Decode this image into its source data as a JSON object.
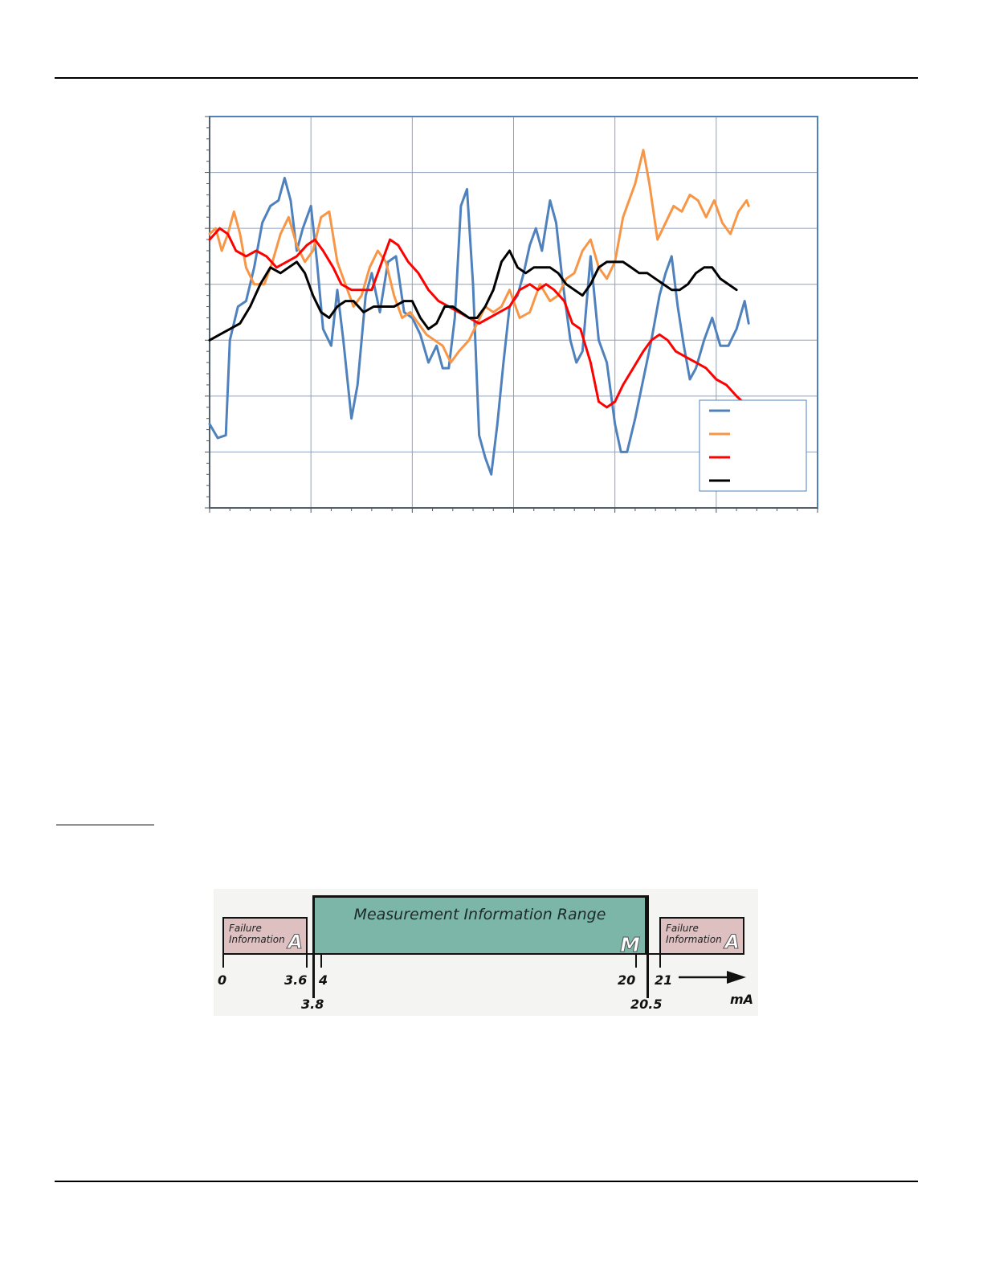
{
  "chart_data": {
    "type": "line",
    "title": "",
    "xlabel": "",
    "ylabel": "",
    "xlim": [
      0,
      30
    ],
    "ylim": [
      0,
      7
    ],
    "grid": true,
    "legend_placement": "bottom-right",
    "series": [
      {
        "color": "#4f81bd",
        "values": [
          [
            0,
            1.5
          ],
          [
            0.4,
            1.25
          ],
          [
            0.8,
            1.3
          ],
          [
            1.0,
            3.0
          ],
          [
            1.4,
            3.6
          ],
          [
            1.8,
            3.7
          ],
          [
            2.2,
            4.3
          ],
          [
            2.6,
            5.1
          ],
          [
            3.0,
            5.4
          ],
          [
            3.4,
            5.5
          ],
          [
            3.7,
            5.9
          ],
          [
            4.0,
            5.5
          ],
          [
            4.3,
            4.6
          ],
          [
            4.6,
            5.0
          ],
          [
            5.0,
            5.4
          ],
          [
            5.3,
            4.4
          ],
          [
            5.6,
            3.2
          ],
          [
            6.0,
            2.9
          ],
          [
            6.3,
            3.9
          ],
          [
            6.6,
            3.0
          ],
          [
            7.0,
            1.6
          ],
          [
            7.3,
            2.2
          ],
          [
            7.7,
            3.8
          ],
          [
            8.0,
            4.2
          ],
          [
            8.4,
            3.5
          ],
          [
            8.8,
            4.4
          ],
          [
            9.2,
            4.5
          ],
          [
            9.6,
            3.5
          ],
          [
            10.0,
            3.4
          ],
          [
            10.4,
            3.1
          ],
          [
            10.8,
            2.6
          ],
          [
            11.2,
            2.9
          ],
          [
            11.5,
            2.5
          ],
          [
            11.8,
            2.5
          ],
          [
            12.1,
            3.4
          ],
          [
            12.4,
            5.4
          ],
          [
            12.7,
            5.7
          ],
          [
            13.0,
            4.0
          ],
          [
            13.3,
            1.3
          ],
          [
            13.6,
            0.9
          ],
          [
            13.9,
            0.6
          ],
          [
            14.2,
            1.5
          ],
          [
            14.5,
            2.6
          ],
          [
            14.8,
            3.6
          ],
          [
            15.2,
            3.8
          ],
          [
            15.5,
            4.2
          ],
          [
            15.8,
            4.7
          ],
          [
            16.1,
            5.0
          ],
          [
            16.4,
            4.6
          ],
          [
            16.8,
            5.5
          ],
          [
            17.1,
            5.1
          ],
          [
            17.4,
            4.1
          ],
          [
            17.8,
            3.0
          ],
          [
            18.1,
            2.6
          ],
          [
            18.4,
            2.8
          ],
          [
            18.8,
            4.5
          ],
          [
            19.2,
            3.0
          ],
          [
            19.6,
            2.6
          ],
          [
            20.0,
            1.5
          ],
          [
            20.3,
            1.0
          ],
          [
            20.6,
            1.0
          ],
          [
            21.0,
            1.6
          ],
          [
            21.4,
            2.3
          ],
          [
            21.8,
            3.0
          ],
          [
            22.2,
            3.8
          ],
          [
            22.5,
            4.2
          ],
          [
            22.8,
            4.5
          ],
          [
            23.1,
            3.6
          ],
          [
            23.4,
            2.9
          ],
          [
            23.7,
            2.3
          ],
          [
            24.0,
            2.5
          ],
          [
            24.4,
            3.0
          ],
          [
            24.8,
            3.4
          ],
          [
            25.2,
            2.9
          ],
          [
            25.6,
            2.9
          ],
          [
            26.0,
            3.2
          ],
          [
            26.4,
            3.7
          ],
          [
            26.6,
            3.3
          ]
        ]
      },
      {
        "color": "#f79646",
        "values": [
          [
            0,
            4.9
          ],
          [
            0.3,
            5.0
          ],
          [
            0.6,
            4.6
          ],
          [
            0.9,
            4.9
          ],
          [
            1.2,
            5.3
          ],
          [
            1.5,
            4.9
          ],
          [
            1.8,
            4.3
          ],
          [
            2.2,
            4.0
          ],
          [
            2.7,
            4.0
          ],
          [
            3.1,
            4.4
          ],
          [
            3.5,
            4.9
          ],
          [
            3.9,
            5.2
          ],
          [
            4.3,
            4.7
          ],
          [
            4.7,
            4.4
          ],
          [
            5.1,
            4.6
          ],
          [
            5.5,
            5.2
          ],
          [
            5.9,
            5.3
          ],
          [
            6.3,
            4.4
          ],
          [
            6.7,
            4.0
          ],
          [
            7.1,
            3.6
          ],
          [
            7.5,
            3.8
          ],
          [
            7.9,
            4.3
          ],
          [
            8.3,
            4.6
          ],
          [
            8.7,
            4.4
          ],
          [
            9.1,
            3.8
          ],
          [
            9.5,
            3.4
          ],
          [
            9.9,
            3.5
          ],
          [
            10.3,
            3.3
          ],
          [
            10.7,
            3.1
          ],
          [
            11.1,
            3.0
          ],
          [
            11.5,
            2.9
          ],
          [
            11.9,
            2.6
          ],
          [
            12.3,
            2.8
          ],
          [
            12.8,
            3.0
          ],
          [
            13.2,
            3.3
          ],
          [
            13.6,
            3.6
          ],
          [
            14.0,
            3.5
          ],
          [
            14.4,
            3.6
          ],
          [
            14.8,
            3.9
          ],
          [
            15.3,
            3.4
          ],
          [
            15.8,
            3.5
          ],
          [
            16.3,
            4.0
          ],
          [
            16.8,
            3.7
          ],
          [
            17.2,
            3.8
          ],
          [
            17.6,
            4.1
          ],
          [
            18.0,
            4.2
          ],
          [
            18.4,
            4.6
          ],
          [
            18.8,
            4.8
          ],
          [
            19.2,
            4.3
          ],
          [
            19.6,
            4.1
          ],
          [
            20.0,
            4.4
          ],
          [
            20.4,
            5.2
          ],
          [
            21.0,
            5.8
          ],
          [
            21.4,
            6.4
          ],
          [
            21.7,
            5.8
          ],
          [
            22.1,
            4.8
          ],
          [
            22.5,
            5.1
          ],
          [
            22.9,
            5.4
          ],
          [
            23.3,
            5.3
          ],
          [
            23.7,
            5.6
          ],
          [
            24.1,
            5.5
          ],
          [
            24.5,
            5.2
          ],
          [
            24.9,
            5.5
          ],
          [
            25.3,
            5.1
          ],
          [
            25.7,
            4.9
          ],
          [
            26.1,
            5.3
          ],
          [
            26.5,
            5.5
          ],
          [
            26.6,
            5.4
          ]
        ]
      },
      {
        "color": "#ff0000",
        "values": [
          [
            0,
            4.8
          ],
          [
            0.5,
            5.0
          ],
          [
            0.9,
            4.9
          ],
          [
            1.3,
            4.6
          ],
          [
            1.8,
            4.5
          ],
          [
            2.3,
            4.6
          ],
          [
            2.8,
            4.5
          ],
          [
            3.3,
            4.3
          ],
          [
            3.8,
            4.4
          ],
          [
            4.3,
            4.5
          ],
          [
            4.8,
            4.7
          ],
          [
            5.2,
            4.8
          ],
          [
            5.6,
            4.6
          ],
          [
            6.1,
            4.3
          ],
          [
            6.5,
            4.0
          ],
          [
            7.0,
            3.9
          ],
          [
            7.5,
            3.9
          ],
          [
            8.0,
            3.9
          ],
          [
            8.5,
            4.4
          ],
          [
            8.9,
            4.8
          ],
          [
            9.3,
            4.7
          ],
          [
            9.8,
            4.4
          ],
          [
            10.3,
            4.2
          ],
          [
            10.8,
            3.9
          ],
          [
            11.3,
            3.7
          ],
          [
            11.8,
            3.6
          ],
          [
            12.3,
            3.5
          ],
          [
            12.8,
            3.4
          ],
          [
            13.3,
            3.3
          ],
          [
            13.8,
            3.4
          ],
          [
            14.3,
            3.5
          ],
          [
            14.8,
            3.6
          ],
          [
            15.3,
            3.9
          ],
          [
            15.8,
            4.0
          ],
          [
            16.2,
            3.9
          ],
          [
            16.6,
            4.0
          ],
          [
            17.0,
            3.9
          ],
          [
            17.5,
            3.7
          ],
          [
            17.9,
            3.3
          ],
          [
            18.3,
            3.2
          ],
          [
            18.8,
            2.6
          ],
          [
            19.2,
            1.9
          ],
          [
            19.6,
            1.8
          ],
          [
            20.0,
            1.9
          ],
          [
            20.4,
            2.2
          ],
          [
            20.9,
            2.5
          ],
          [
            21.4,
            2.8
          ],
          [
            21.8,
            3.0
          ],
          [
            22.2,
            3.1
          ],
          [
            22.6,
            3.0
          ],
          [
            23.0,
            2.8
          ],
          [
            23.5,
            2.7
          ],
          [
            24.0,
            2.6
          ],
          [
            24.5,
            2.5
          ],
          [
            25.0,
            2.3
          ],
          [
            25.5,
            2.2
          ],
          [
            26.0,
            2.0
          ],
          [
            26.3,
            1.9
          ],
          [
            26.6,
            1.8
          ]
        ]
      },
      {
        "color": "#000000",
        "values": [
          [
            0,
            3.0
          ],
          [
            0.5,
            3.1
          ],
          [
            1.0,
            3.2
          ],
          [
            1.5,
            3.3
          ],
          [
            2.0,
            3.6
          ],
          [
            2.5,
            4.0
          ],
          [
            3.0,
            4.3
          ],
          [
            3.5,
            4.2
          ],
          [
            3.9,
            4.3
          ],
          [
            4.3,
            4.4
          ],
          [
            4.7,
            4.2
          ],
          [
            5.1,
            3.8
          ],
          [
            5.5,
            3.5
          ],
          [
            5.9,
            3.4
          ],
          [
            6.3,
            3.6
          ],
          [
            6.7,
            3.7
          ],
          [
            7.1,
            3.7
          ],
          [
            7.6,
            3.5
          ],
          [
            8.1,
            3.6
          ],
          [
            8.6,
            3.6
          ],
          [
            9.1,
            3.6
          ],
          [
            9.6,
            3.7
          ],
          [
            10.0,
            3.7
          ],
          [
            10.4,
            3.4
          ],
          [
            10.8,
            3.2
          ],
          [
            11.2,
            3.3
          ],
          [
            11.6,
            3.6
          ],
          [
            12.0,
            3.6
          ],
          [
            12.4,
            3.5
          ],
          [
            12.8,
            3.4
          ],
          [
            13.2,
            3.4
          ],
          [
            13.6,
            3.6
          ],
          [
            14.0,
            3.9
          ],
          [
            14.4,
            4.4
          ],
          [
            14.8,
            4.6
          ],
          [
            15.2,
            4.3
          ],
          [
            15.6,
            4.2
          ],
          [
            16.0,
            4.3
          ],
          [
            16.4,
            4.3
          ],
          [
            16.8,
            4.3
          ],
          [
            17.2,
            4.2
          ],
          [
            17.6,
            4.0
          ],
          [
            18.0,
            3.9
          ],
          [
            18.4,
            3.8
          ],
          [
            18.8,
            4.0
          ],
          [
            19.2,
            4.3
          ],
          [
            19.6,
            4.4
          ],
          [
            20.0,
            4.4
          ],
          [
            20.4,
            4.4
          ],
          [
            20.8,
            4.3
          ],
          [
            21.2,
            4.2
          ],
          [
            21.6,
            4.2
          ],
          [
            22.0,
            4.1
          ],
          [
            22.4,
            4.0
          ],
          [
            22.8,
            3.9
          ],
          [
            23.2,
            3.9
          ],
          [
            23.6,
            4.0
          ],
          [
            24.0,
            4.2
          ],
          [
            24.4,
            4.3
          ],
          [
            24.8,
            4.3
          ],
          [
            25.2,
            4.1
          ],
          [
            25.6,
            4.0
          ],
          [
            26.0,
            3.9
          ]
        ]
      }
    ]
  },
  "range_figure": {
    "failure_low_label": "Failure\nInformation",
    "failure_low_letter": "A",
    "measurement_label": "Measurement Information Range",
    "measurement_letter": "M",
    "failure_high_label": "Failure\nInformation",
    "failure_high_letter": "A",
    "ticks": {
      "t0": "0",
      "t3_6": "3.6",
      "t4": "4",
      "t20": "20",
      "t21": "21",
      "t3_8": "3.8",
      "t20_5": "20.5"
    },
    "unit": "mA"
  }
}
